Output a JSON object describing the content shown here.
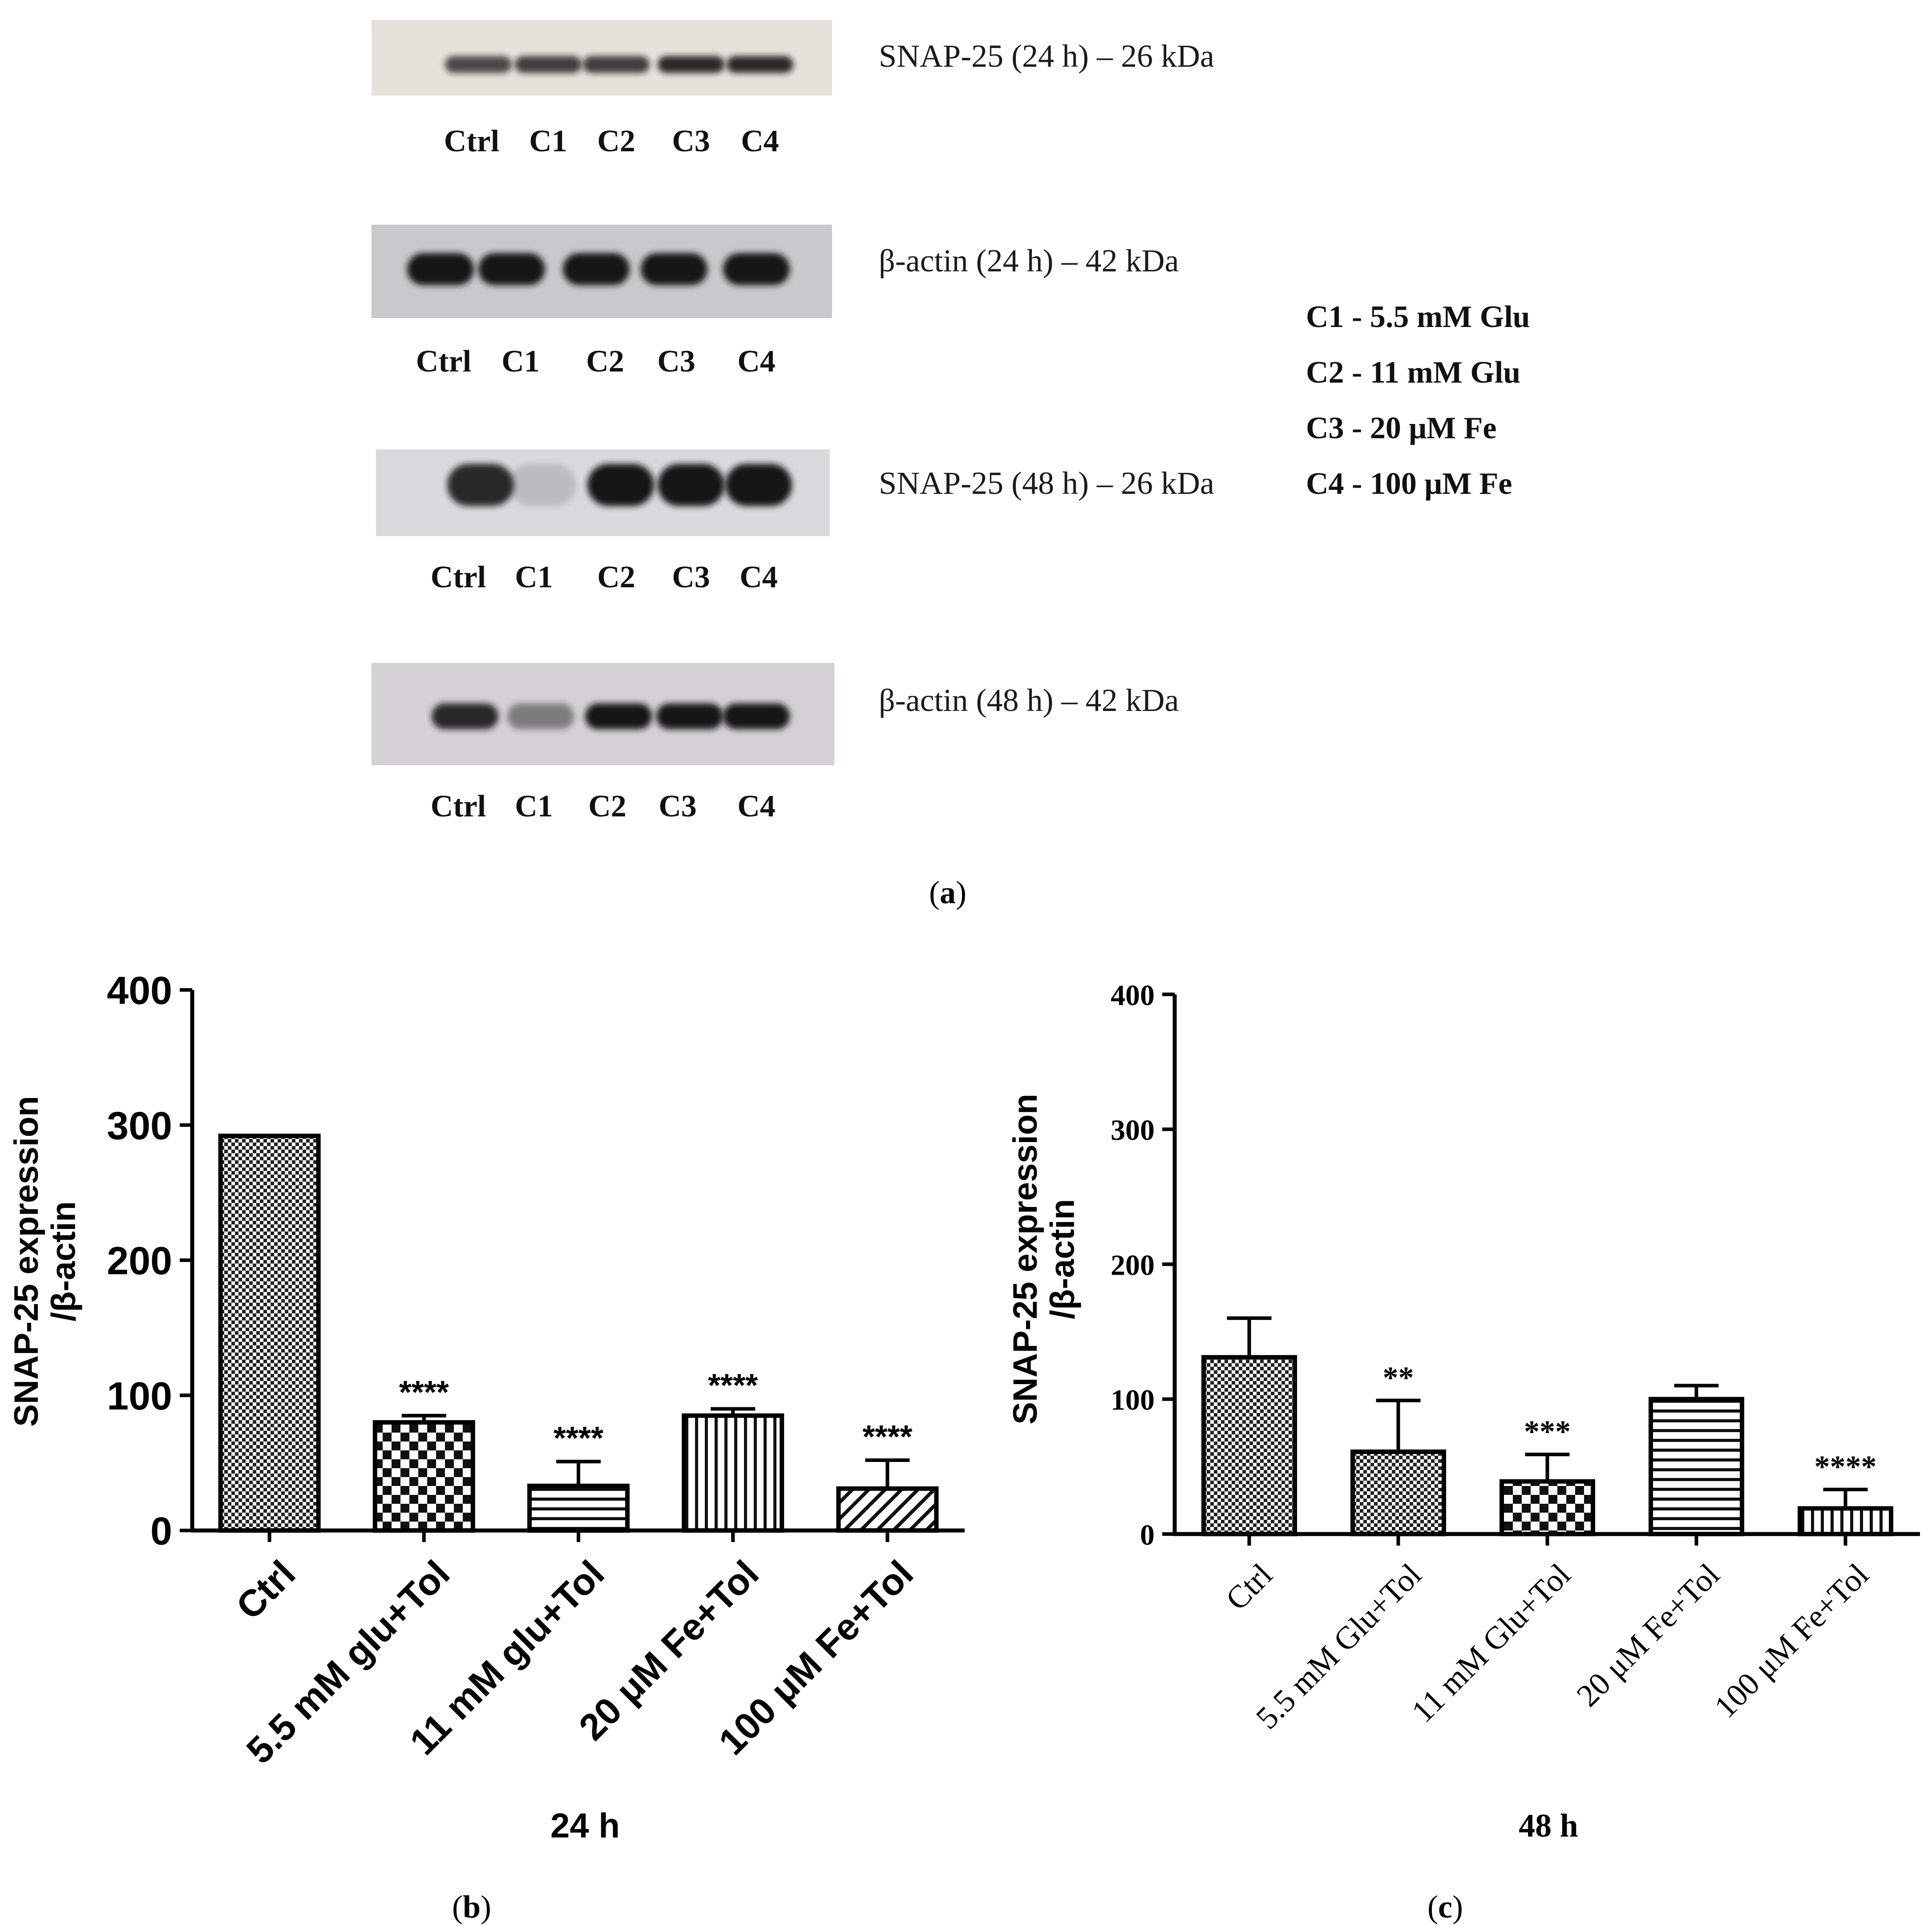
{
  "panel_a": {
    "label_a": "a",
    "blots": [
      {
        "label": "SNAP-25 (24 h) – 26 kDa",
        "lanes": [
          "Ctrl",
          "C1",
          "C2",
          "C3",
          "C4"
        ],
        "band_intensity": [
          0.75,
          0.8,
          0.8,
          0.9,
          0.9
        ],
        "background": "#e6e1da"
      },
      {
        "label": "β-actin (24 h) – 42 kDa",
        "lanes": [
          "Ctrl",
          "C1",
          "C2",
          "C3",
          "C4"
        ],
        "band_intensity": [
          1.0,
          1.0,
          1.0,
          1.0,
          1.0
        ],
        "background": "#c9c8cc"
      },
      {
        "label": "SNAP-25 (48 h) – 26 kDa",
        "lanes": [
          "Ctrl",
          "C1",
          "C2",
          "C3",
          "C4"
        ],
        "band_intensity": [
          0.9,
          0.15,
          1.0,
          1.0,
          1.0
        ],
        "background": "#dcd9de"
      },
      {
        "label": "β-actin (48 h) – 42 kDa",
        "lanes": [
          "Ctrl",
          "C1",
          "C2",
          "C3",
          "C4"
        ],
        "band_intensity": [
          0.9,
          0.45,
          1.0,
          1.0,
          1.0
        ],
        "background": "#d5d0d6"
      }
    ],
    "legend": [
      "C1 - 5.5 mM Glu",
      "C2 - 11 mM Glu",
      "C3 - 20 μM Fe",
      "C4 - 100 μM Fe"
    ]
  },
  "chart_data": [
    {
      "type": "bar",
      "panel_label": "b",
      "title": "",
      "xlabel": "24 h",
      "ylabel_line1": "SNAP-25 expression",
      "ylabel_line2": "/β-actin",
      "categories": [
        "Ctrl",
        "5.5 mM glu+Tol",
        "11 mM glu+Tol",
        "20 μM Fe+Tol",
        "100 μM Fe+Tol"
      ],
      "values": [
        292,
        80,
        33,
        85,
        31
      ],
      "error_upper": [
        0,
        5,
        18,
        5,
        21
      ],
      "significance": [
        "",
        "****",
        "****",
        "****",
        "****"
      ],
      "patterns": [
        "dense-check",
        "checker",
        "h-lines",
        "v-lines",
        "diagonal"
      ],
      "ylim": [
        0,
        400
      ],
      "yticks": [
        "0",
        "100",
        "200",
        "300",
        "400"
      ],
      "grid": false
    },
    {
      "type": "bar",
      "panel_label": "c",
      "title": "",
      "xlabel": "48 h",
      "ylabel_line1": "SNAP-25 expression",
      "ylabel_line2": "/β-actin",
      "categories": [
        "Ctrl",
        "5.5 mM Glu+Tol",
        "11 mM Glu+Tol",
        "20 μM Fe+Tol",
        "100 μM Fe+Tol"
      ],
      "values": [
        131,
        61,
        39,
        100,
        19
      ],
      "error_upper": [
        29,
        38,
        20,
        10,
        14
      ],
      "significance": [
        "",
        "**",
        "***",
        "",
        "****"
      ],
      "patterns": [
        "dense-check",
        "dense-check",
        "checker",
        "h-lines",
        "v-lines"
      ],
      "ylim": [
        0,
        400
      ],
      "yticks": [
        "0",
        "100",
        "200",
        "300",
        "400"
      ],
      "grid": false
    }
  ]
}
